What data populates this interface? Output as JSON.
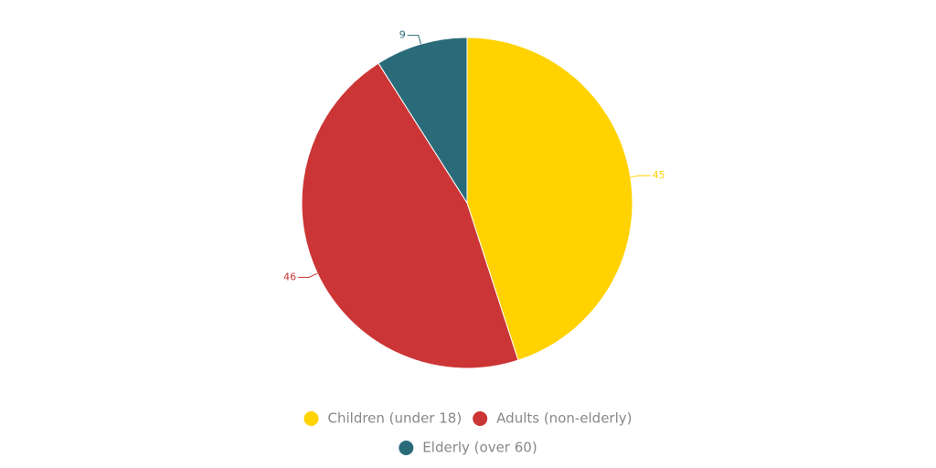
{
  "chart_data": {
    "type": "pie",
    "categories": [
      "Children (under 18)",
      "Adults (non-elderly)",
      "Elderly (over 60)"
    ],
    "values": [
      45,
      46,
      9
    ],
    "colors": [
      "#ffd200",
      "#cc3535",
      "#2a6b7a"
    ],
    "legend": "bottom"
  }
}
